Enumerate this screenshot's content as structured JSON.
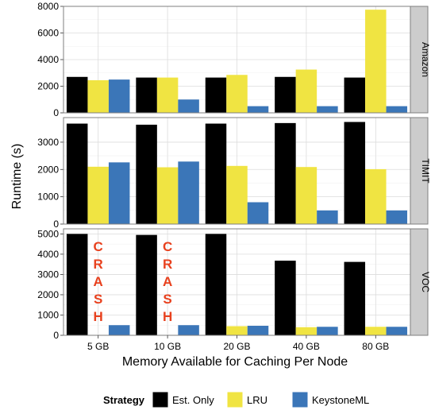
{
  "chart_data": {
    "type": "bar",
    "title": "",
    "xlabel": "Memory Available for Caching Per Node",
    "ylabel": "Runtime (s)",
    "categories": [
      "5 GB",
      "10 GB",
      "20 GB",
      "40 GB",
      "80 GB"
    ],
    "legend": {
      "title": "Strategy",
      "placement": "bottom",
      "entries": [
        "Est. Only",
        "LRU",
        "KeystoneML"
      ]
    },
    "series_colors": {
      "Est. Only": "#000000",
      "LRU": "#f0e442",
      "KeystoneML": "#3b76b8"
    },
    "annotation_color": "#e8411e",
    "grid": true,
    "panels": [
      {
        "label": "Amazon",
        "ylim": [
          0,
          8000
        ],
        "ticks": [
          0,
          2000,
          4000,
          6000,
          8000
        ],
        "series": [
          {
            "name": "Est. Only",
            "values": [
              2700,
              2650,
              2650,
              2700,
              2650
            ]
          },
          {
            "name": "LRU",
            "values": [
              2450,
              2650,
              2850,
              3250,
              7750
            ]
          },
          {
            "name": "KeystoneML",
            "values": [
              2500,
              1000,
              500,
              500,
              500
            ]
          }
        ],
        "annotations": []
      },
      {
        "label": "TIMIT",
        "ylim": [
          0,
          3900
        ],
        "ticks": [
          0,
          1000,
          2000,
          3000
        ],
        "series": [
          {
            "name": "Est. Only",
            "values": [
              3680,
              3640,
              3680,
              3700,
              3740
            ]
          },
          {
            "name": "LRU",
            "values": [
              2100,
              2080,
              2130,
              2090,
              2010
            ]
          },
          {
            "name": "KeystoneML",
            "values": [
              2260,
              2290,
              800,
              500,
              500
            ]
          }
        ],
        "annotations": []
      },
      {
        "label": "VOC",
        "ylim": [
          0,
          5250
        ],
        "ticks": [
          0,
          1000,
          2000,
          3000,
          4000,
          5000
        ],
        "series": [
          {
            "name": "Est. Only",
            "values": [
              5000,
              4950,
              5000,
              3680,
              3620
            ]
          },
          {
            "name": "LRU",
            "values": [
              null,
              null,
              450,
              400,
              420
            ]
          },
          {
            "name": "KeystoneML",
            "values": [
              500,
              500,
              470,
              420,
              420
            ]
          }
        ],
        "annotations": [
          {
            "category": "5 GB",
            "series": "LRU",
            "text": [
              "C",
              "R",
              "A",
              "S",
              "H"
            ]
          },
          {
            "category": "10 GB",
            "series": "LRU",
            "text": [
              "C",
              "R",
              "A",
              "S",
              "H"
            ]
          }
        ]
      }
    ]
  }
}
